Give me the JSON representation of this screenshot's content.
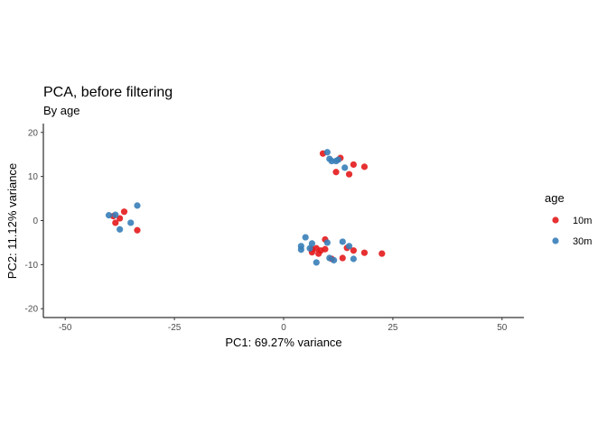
{
  "chart_data": {
    "type": "scatter",
    "title": "PCA, before filtering",
    "subtitle": "By age",
    "xlabel": "PC1: 69.27% variance",
    "ylabel": "PC2: 11.12% variance",
    "xlim": [
      -55,
      55
    ],
    "ylim": [
      -22,
      22
    ],
    "xticks": [
      -50,
      -25,
      0,
      25,
      50
    ],
    "yticks": [
      -20,
      -10,
      0,
      10,
      20
    ],
    "grid": false,
    "legend": {
      "title": "age",
      "position": "right"
    },
    "series": [
      {
        "name": "10m",
        "color": "#e41a1c",
        "points": [
          [
            -39,
            1
          ],
          [
            -37.5,
            0.5
          ],
          [
            -36.5,
            2
          ],
          [
            -38.5,
            -0.5
          ],
          [
            -33.5,
            -2.2
          ],
          [
            9,
            15.2
          ],
          [
            13,
            14.2
          ],
          [
            16,
            12.7
          ],
          [
            18.5,
            12.2
          ],
          [
            12,
            11
          ],
          [
            15,
            10.5
          ],
          [
            9.5,
            -4.3
          ],
          [
            6.5,
            -6.5
          ],
          [
            7.5,
            -6.3
          ],
          [
            8.5,
            -6.8
          ],
          [
            9.5,
            -6.5
          ],
          [
            6.5,
            -7.2
          ],
          [
            8,
            -7.5
          ],
          [
            14.5,
            -6.2
          ],
          [
            16,
            -6.8
          ],
          [
            18.5,
            -7.3
          ],
          [
            22.5,
            -7.5
          ],
          [
            11,
            -8.7
          ],
          [
            13.5,
            -8.5
          ]
        ]
      },
      {
        "name": "30m",
        "color": "#377eb8",
        "points": [
          [
            -40,
            1.2
          ],
          [
            -38.5,
            1.3
          ],
          [
            -33.5,
            3.4
          ],
          [
            -35,
            -0.5
          ],
          [
            -37.5,
            -2
          ],
          [
            10,
            15.5
          ],
          [
            10.5,
            14
          ],
          [
            11,
            13.5
          ],
          [
            12,
            13.5
          ],
          [
            14,
            12
          ],
          [
            12.5,
            13.8
          ],
          [
            5,
            -3.8
          ],
          [
            6.5,
            -5.2
          ],
          [
            10,
            -5
          ],
          [
            13.5,
            -4.8
          ],
          [
            15,
            -5.8
          ],
          [
            4,
            -5.8
          ],
          [
            4,
            -6.6
          ],
          [
            6,
            -6.3
          ],
          [
            10.5,
            -8.5
          ],
          [
            11.5,
            -9
          ],
          [
            16,
            -8.7
          ],
          [
            7.5,
            -9.5
          ]
        ]
      }
    ]
  }
}
